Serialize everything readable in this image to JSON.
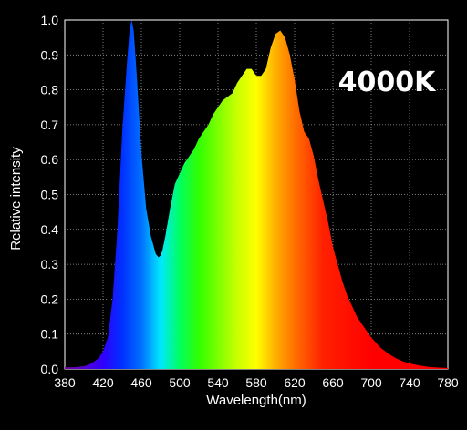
{
  "chart_data": {
    "type": "area",
    "xlabel": "Wavelength(nm)",
    "ylabel": "Relative intensity",
    "annotation": "4000K",
    "xlim": [
      380,
      780
    ],
    "ylim": [
      0,
      1.0
    ],
    "x_ticks": [
      380,
      420,
      460,
      500,
      540,
      580,
      620,
      660,
      700,
      740,
      780
    ],
    "y_ticks": [
      "0.0",
      "0.1",
      "0.2",
      "0.3",
      "0.4",
      "0.5",
      "0.6",
      "0.7",
      "0.8",
      "0.9",
      "1.0"
    ],
    "grid": true,
    "x": [
      380,
      390,
      400,
      405,
      410,
      415,
      420,
      425,
      430,
      435,
      440,
      445,
      448,
      450,
      452,
      455,
      460,
      465,
      470,
      475,
      478,
      480,
      482,
      485,
      490,
      495,
      500,
      505,
      510,
      515,
      520,
      525,
      530,
      535,
      540,
      545,
      550,
      555,
      560,
      565,
      570,
      575,
      580,
      585,
      590,
      595,
      600,
      605,
      610,
      615,
      620,
      625,
      630,
      635,
      640,
      645,
      650,
      655,
      660,
      665,
      670,
      675,
      680,
      685,
      690,
      695,
      700,
      705,
      710,
      715,
      720,
      725,
      730,
      735,
      740,
      750,
      760,
      770,
      780
    ],
    "y": [
      0.005,
      0.005,
      0.008,
      0.012,
      0.02,
      0.03,
      0.05,
      0.09,
      0.2,
      0.4,
      0.68,
      0.88,
      0.98,
      1.0,
      0.97,
      0.85,
      0.62,
      0.46,
      0.38,
      0.33,
      0.32,
      0.325,
      0.34,
      0.38,
      0.46,
      0.53,
      0.56,
      0.59,
      0.61,
      0.63,
      0.66,
      0.68,
      0.7,
      0.73,
      0.75,
      0.77,
      0.78,
      0.79,
      0.82,
      0.84,
      0.86,
      0.86,
      0.84,
      0.84,
      0.86,
      0.92,
      0.96,
      0.97,
      0.95,
      0.9,
      0.83,
      0.74,
      0.68,
      0.66,
      0.61,
      0.54,
      0.48,
      0.42,
      0.35,
      0.3,
      0.25,
      0.21,
      0.18,
      0.15,
      0.13,
      0.11,
      0.09,
      0.075,
      0.06,
      0.05,
      0.04,
      0.032,
      0.025,
      0.02,
      0.016,
      0.01,
      0.006,
      0.004,
      0.003
    ]
  }
}
